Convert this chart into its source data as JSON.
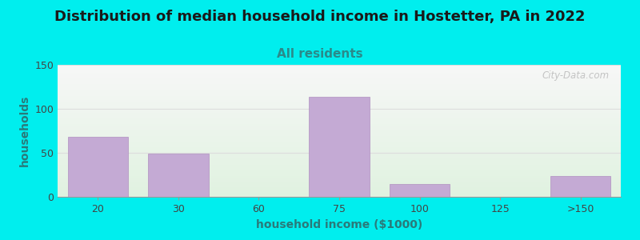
{
  "title": "Distribution of median household income in Hostetter, PA in 2022",
  "subtitle": "All residents",
  "xlabel": "household income ($1000)",
  "ylabel": "households",
  "background_color": "#00EEEE",
  "bar_color": "#c4aad4",
  "bar_edge_color": "#b090c0",
  "categories": [
    "20",
    "30",
    "60",
    "75",
    "100",
    "125",
    ">150"
  ],
  "values": [
    68,
    49,
    0,
    114,
    15,
    0,
    24
  ],
  "ylim": [
    0,
    150
  ],
  "yticks": [
    0,
    50,
    100,
    150
  ],
  "title_fontsize": 13,
  "subtitle_fontsize": 11,
  "subtitle_color": "#2a8a8a",
  "title_color": "#1a1a1a",
  "axis_label_fontsize": 10,
  "tick_fontsize": 9,
  "ylabel_color": "#2a7a7a",
  "xlabel_color": "#2a7a7a",
  "grid_color": "#dddddd",
  "watermark_text": "City-Data.com",
  "watermark_color": "#bbbbbb"
}
